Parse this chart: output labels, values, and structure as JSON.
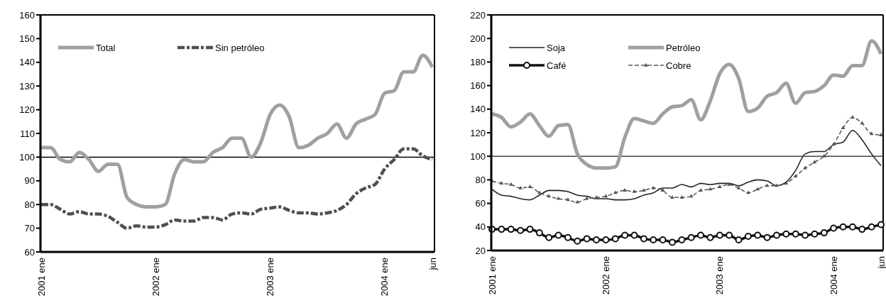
{
  "chart_data": [
    {
      "type": "line",
      "categories": [
        "2001 ene",
        null,
        null,
        null,
        null,
        null,
        null,
        null,
        null,
        null,
        null,
        null,
        "2002 ene",
        null,
        null,
        null,
        null,
        null,
        null,
        null,
        null,
        null,
        null,
        null,
        "2003 ene",
        null,
        null,
        null,
        null,
        null,
        null,
        null,
        null,
        null,
        null,
        null,
        "2004 ene",
        null,
        null,
        null,
        null,
        "jun"
      ],
      "series": [
        {
          "name": "Total",
          "color": "#a0a0a0",
          "line_style": "solid",
          "marker": "none",
          "values": [
            104,
            104,
            99,
            98,
            102,
            99,
            94,
            97,
            97,
            83,
            80,
            79,
            79,
            80,
            93,
            99,
            98,
            98,
            102,
            104,
            108,
            108,
            100,
            106,
            118,
            122,
            117,
            104,
            105,
            108,
            110,
            114,
            108,
            114,
            116,
            118,
            127,
            128,
            136,
            136,
            143,
            138
          ]
        },
        {
          "name": "Sin petróleo",
          "color": "#505050",
          "line_style": "dashed",
          "marker": "none",
          "values": [
            80,
            80,
            78,
            76,
            77,
            76,
            76,
            75,
            72.5,
            70,
            71,
            70.5,
            70.5,
            71.5,
            73.5,
            73,
            73,
            74.5,
            74.5,
            73.5,
            76,
            76.5,
            76,
            78,
            78.5,
            79,
            77.5,
            76.5,
            76.5,
            76,
            76.5,
            77.5,
            80,
            84.5,
            87,
            88.5,
            95,
            99,
            103.5,
            103.5,
            100.5,
            99
          ]
        }
      ],
      "ylim": [
        60,
        160
      ],
      "yticks": [
        60,
        70,
        80,
        90,
        100,
        110,
        120,
        130,
        140,
        150,
        160
      ],
      "ref_lines": [
        {
          "axis": "y",
          "value": 100,
          "color": "#000000"
        }
      ],
      "legend": "top left",
      "grid": false
    },
    {
      "type": "line",
      "categories": [
        "2001 ene",
        null,
        null,
        null,
        null,
        null,
        null,
        null,
        null,
        null,
        null,
        null,
        "2002 ene",
        null,
        null,
        null,
        null,
        null,
        null,
        null,
        null,
        null,
        null,
        null,
        "2003 ene",
        null,
        null,
        null,
        null,
        null,
        null,
        null,
        null,
        null,
        null,
        null,
        "2004 ene",
        null,
        null,
        null,
        null,
        "jun"
      ],
      "series": [
        {
          "name": "Soja",
          "color": "#222222",
          "line_style": "solid",
          "marker": "none",
          "values": [
            72,
            67,
            66,
            64,
            63,
            67,
            71,
            71,
            70,
            67,
            66,
            64,
            64,
            63,
            63,
            64,
            67,
            69,
            73,
            73,
            76,
            74,
            77,
            76,
            77,
            77,
            75,
            78,
            80,
            79,
            75,
            78,
            88,
            102,
            104,
            104,
            110,
            112,
            122,
            114,
            102,
            92
          ]
        },
        {
          "name": "Petróleo",
          "color": "#a0a0a0",
          "line_style": "solid",
          "marker": "none",
          "values": [
            136,
            133,
            125,
            129,
            136,
            126,
            117,
            126,
            127,
            102,
            93,
            90,
            90,
            91,
            116,
            132,
            130,
            128,
            136,
            142,
            143,
            148,
            131,
            147,
            170,
            178,
            166,
            138,
            141,
            151,
            154,
            162,
            145,
            154,
            155,
            160,
            169,
            168,
            177,
            177,
            198,
            187
          ]
        },
        {
          "name": "Café",
          "color": "#111111",
          "line_style": "solid",
          "marker": "circle",
          "values": [
            38,
            38,
            38,
            37,
            38,
            35,
            31,
            33,
            31,
            28,
            30,
            29,
            29,
            30,
            33,
            33,
            30,
            29,
            29,
            27,
            29,
            31,
            33,
            31,
            33,
            33,
            29,
            32,
            33,
            31,
            33,
            34,
            34,
            33,
            34,
            35,
            39,
            40,
            40,
            38,
            40,
            42
          ]
        },
        {
          "name": "Cobre",
          "color": "#555555",
          "line_style": "dashed",
          "marker": "triangle",
          "values": [
            79,
            77,
            76,
            73,
            74,
            69,
            66,
            64,
            63,
            61,
            64,
            65,
            66,
            69,
            71,
            70,
            71,
            73,
            71,
            65,
            65,
            66,
            71,
            72,
            74,
            76,
            73,
            69,
            72,
            75,
            75,
            77,
            83,
            90,
            95,
            100,
            110,
            124,
            133,
            128,
            119,
            118
          ]
        }
      ],
      "ylim": [
        20,
        220
      ],
      "yticks": [
        20,
        40,
        60,
        80,
        100,
        120,
        140,
        160,
        180,
        200,
        220
      ],
      "ref_lines": [
        {
          "axis": "y",
          "value": 100,
          "color": "#444444"
        }
      ],
      "legend": "top left",
      "grid": false
    }
  ]
}
